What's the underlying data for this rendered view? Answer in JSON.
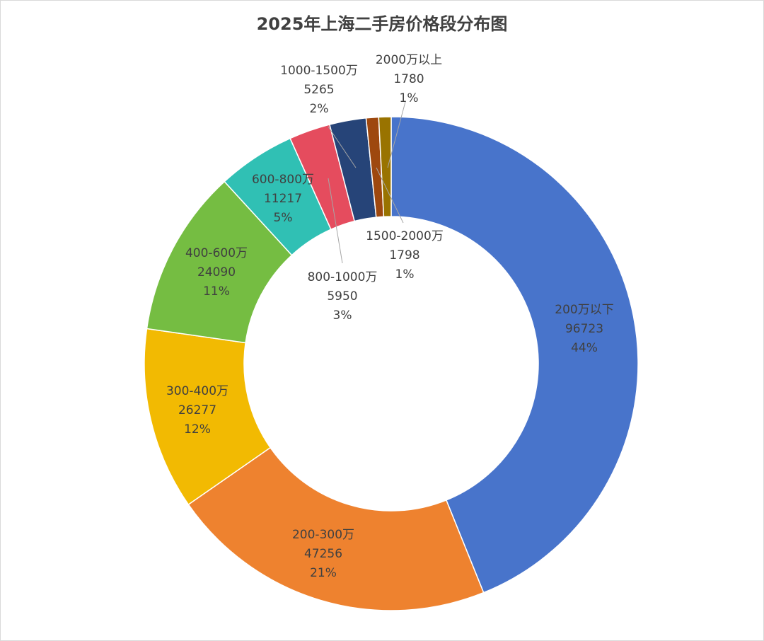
{
  "chart_data": {
    "type": "pie",
    "variant": "donut",
    "title": "2025年上海二手房价格段分布图",
    "legend": "none",
    "slices": [
      {
        "label": "200万以下",
        "value": 96723,
        "percent": "44%",
        "color": "#4874CB"
      },
      {
        "label": "200-300万",
        "value": 47256,
        "percent": "21%",
        "color": "#EE822F"
      },
      {
        "label": "300-400万",
        "value": 26277,
        "percent": "12%",
        "color": "#F2BA02"
      },
      {
        "label": "400-600万",
        "value": 24090,
        "percent": "11%",
        "color": "#75BD42"
      },
      {
        "label": "600-800万",
        "value": 11217,
        "percent": "5%",
        "color": "#30C0B4"
      },
      {
        "label": "800-1000万",
        "value": 5950,
        "percent": "3%",
        "color": "#E54C5E"
      },
      {
        "label": "1000-1500万",
        "value": 5265,
        "percent": "2%",
        "color": "#264478"
      },
      {
        "label": "1500-2000万",
        "value": 1798,
        "percent": "1%",
        "color": "#9E480E"
      },
      {
        "label": "2000万以上",
        "value": 1780,
        "percent": "1%",
        "color": "#997300"
      }
    ]
  }
}
